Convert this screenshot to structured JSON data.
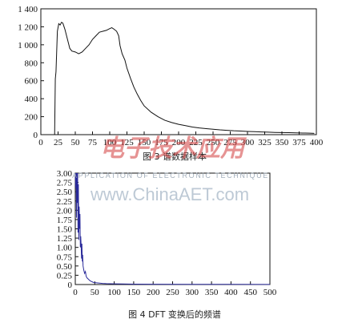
{
  "chart_data": [
    {
      "type": "line",
      "caption": "图 3   谱数据样本",
      "xlim": [
        0,
        400
      ],
      "ylim": [
        0,
        1400
      ],
      "x_ticks": [
        0,
        25,
        50,
        75,
        100,
        125,
        150,
        175,
        200,
        225,
        250,
        275,
        300,
        325,
        350,
        375,
        400
      ],
      "y_ticks": [
        0,
        200,
        400,
        600,
        800,
        1000,
        1200,
        1400
      ],
      "y_tick_labels": [
        "0",
        "200",
        "400",
        "600",
        "800",
        "1 000",
        "1 200",
        "1 400"
      ],
      "line_color": "#111111",
      "series": [
        {
          "x": [
            0,
            19,
            20,
            21,
            22,
            24,
            26,
            28,
            30,
            32,
            35,
            38,
            42,
            45,
            50,
            55,
            60,
            65,
            70,
            75,
            80,
            85,
            90,
            95,
            100,
            103,
            106,
            110,
            113,
            115,
            118,
            122,
            125,
            130,
            135,
            140,
            145,
            150,
            160,
            170,
            180,
            190,
            200,
            210,
            220,
            230,
            240,
            250,
            260,
            270,
            280,
            290,
            300,
            310,
            320,
            330,
            340,
            350,
            360,
            370,
            380,
            390,
            397
          ],
          "y": [
            0,
            0,
            0,
            620,
            700,
            1150,
            1235,
            1220,
            1250,
            1240,
            1170,
            1080,
            960,
            930,
            920,
            900,
            920,
            960,
            1000,
            1060,
            1100,
            1140,
            1150,
            1160,
            1180,
            1190,
            1175,
            1150,
            1100,
            990,
            900,
            830,
            740,
            630,
            530,
            450,
            380,
            320,
            250,
            200,
            160,
            135,
            115,
            100,
            85,
            75,
            67,
            60,
            53,
            48,
            43,
            40,
            36,
            33,
            30,
            28,
            25,
            23,
            22,
            20,
            18,
            17,
            15
          ]
        }
      ]
    },
    {
      "type": "line",
      "caption": "图 4   DFT 变换后的频谱",
      "xlim": [
        0,
        500
      ],
      "ylim": [
        0,
        3
      ],
      "x_ticks": [
        0,
        50,
        100,
        150,
        200,
        250,
        300,
        350,
        400,
        450,
        500
      ],
      "y_ticks": [
        0,
        0.25,
        0.5,
        0.75,
        1,
        1.25,
        1.5,
        1.75,
        2,
        2.25,
        2.5,
        2.75,
        3
      ],
      "y_tick_labels": [
        "0",
        "0.25",
        "0.50",
        "0.75",
        "1.00",
        "1.25",
        "1.50",
        "1.75",
        "2.00",
        "2.25",
        "2.50",
        "2.75",
        "3.00"
      ],
      "line_color": "#2a2a9a",
      "series": [
        {
          "x": [
            0,
            1,
            2,
            3,
            4,
            5,
            6,
            7,
            8,
            9,
            10,
            11,
            12,
            13,
            14,
            15,
            16,
            17,
            18,
            19,
            20,
            22,
            24,
            26,
            28,
            30,
            34,
            38,
            42,
            46,
            50,
            60,
            70,
            80,
            100,
            120,
            150,
            200,
            300,
            400,
            500
          ],
          "y": [
            3.0,
            2.6,
            3.0,
            1.8,
            3.0,
            2.2,
            3.0,
            1.4,
            2.7,
            1.2,
            2.1,
            1.5,
            1.9,
            1.0,
            1.3,
            1.05,
            0.7,
            1.1,
            0.62,
            0.8,
            0.5,
            0.38,
            0.3,
            0.35,
            0.22,
            0.18,
            0.14,
            0.1,
            0.08,
            0.06,
            0.05,
            0.04,
            0.03,
            0.025,
            0.02,
            0.015,
            0.01,
            0.008,
            0.005,
            0.004,
            0.003
          ]
        }
      ]
    }
  ],
  "watermark": {
    "logo": "电子技术应用",
    "subtitle": "APPLICATION OF ELECTRONIC TECHNIQUE",
    "url": "www.ChinaAET.com"
  }
}
